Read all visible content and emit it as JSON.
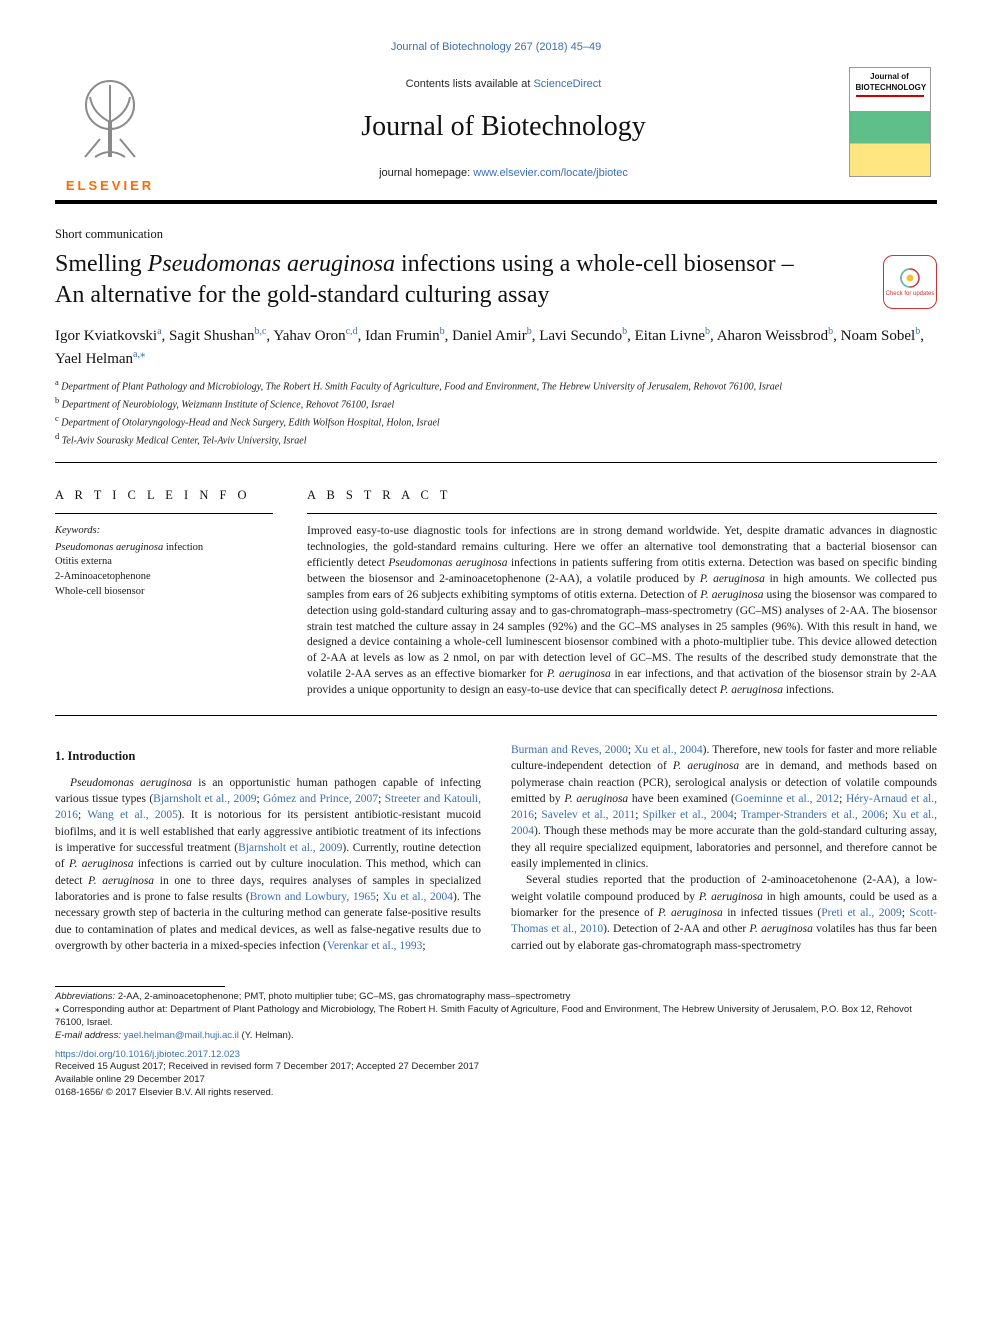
{
  "colors": {
    "link": "#3b6fb3",
    "elsevier_orange": "#ff6a00",
    "rule": "#000000",
    "text": "#1a1a1a",
    "badge_red": "#cc3333"
  },
  "typography": {
    "title_fontsize_pt": 18,
    "journal_title_fontsize_pt": 21,
    "body_fontsize_pt": 9,
    "abstract_fontsize_pt": 9,
    "affil_fontsize_pt": 7.5
  },
  "citation": "Journal of Biotechnology 267 (2018) 45–49",
  "masthead": {
    "contents_prefix": "Contents lists available at ",
    "contents_link": "ScienceDirect",
    "journal_title": "Journal of Biotechnology",
    "homepage_prefix": "journal homepage: ",
    "homepage_url": "www.elsevier.com/locate/jbiotec",
    "publisher": "ELSEVIER",
    "cover_label": "Journal of BIOTECHNOLOGY"
  },
  "article_type": "Short communication",
  "title_line1_pre": "Smelling ",
  "title_line1_ital": "Pseudomonas aeruginosa",
  "title_line1_post": " infections using a whole-cell biosensor –",
  "title_line2": "An alternative for the gold-standard culturing assay",
  "check_badge_label": "Check for updates",
  "authors": [
    {
      "name": "Igor Kviatkovski",
      "aff": "a"
    },
    {
      "name": "Sagit Shushan",
      "aff": "b,c"
    },
    {
      "name": "Yahav Oron",
      "aff": "c,d"
    },
    {
      "name": "Idan Frumin",
      "aff": "b"
    },
    {
      "name": "Daniel Amir",
      "aff": "b"
    },
    {
      "name": "Lavi Secundo",
      "aff": "b"
    },
    {
      "name": "Eitan Livne",
      "aff": "b"
    },
    {
      "name": "Aharon Weissbrod",
      "aff": "b"
    },
    {
      "name": "Noam Sobel",
      "aff": "b"
    },
    {
      "name": "Yael Helman",
      "aff": "a,",
      "corr": "⁎"
    }
  ],
  "affiliations": [
    {
      "sup": "a",
      "text": "Department of Plant Pathology and Microbiology, The Robert H. Smith Faculty of Agriculture, Food and Environment, The Hebrew University of Jerusalem, Rehovot 76100, Israel"
    },
    {
      "sup": "b",
      "text": "Department of Neurobiology, Weizmann Institute of Science, Rehovot 76100, Israel"
    },
    {
      "sup": "c",
      "text": "Department of Otolaryngology-Head and Neck Surgery, Edith Wolfson Hospital, Holon, Israel"
    },
    {
      "sup": "d",
      "text": "Tel-Aviv Sourasky Medical Center, Tel-Aviv University, Israel"
    }
  ],
  "info_head": "A R T I C L E  I N F O",
  "abs_head": "A B S T R A C T",
  "keywords_label": "Keywords:",
  "keywords": [
    "Pseudomonas aeruginosa infection",
    "Otitis externa",
    "2-Aminoacetophenone",
    "Whole-cell biosensor"
  ],
  "abstract_html": "Improved easy-to-use diagnostic tools for infections are in strong demand worldwide. Yet, despite dramatic advances in diagnostic technologies, the gold-standard remains culturing. Here we offer an alternative tool demonstrating that a bacterial biosensor can efficiently detect <i>Pseudomonas aeruginosa</i> infections in patients suffering from otitis externa. Detection was based on specific binding between the biosensor and 2-aminoacetophenone (2-AA), a volatile produced by <i>P. aeruginosa</i> in high amounts. We collected pus samples from ears of 26 subjects exhibiting symptoms of otitis externa. Detection of <i>P. aeruginosa</i> using the biosensor was compared to detection using gold-standard culturing assay and to gas-chromatograph–mass-spectrometry (GC–MS) analyses of 2-AA. The biosensor strain test matched the culture assay in 24 samples (92%) and the GC–MS analyses in 25 samples (96%). With this result in hand, we designed a device containing a whole-cell luminescent biosensor combined with a photo-multiplier tube. This device allowed detection of 2-AA at levels as low as 2 nmol, on par with detection level of GC–MS. The results of the described study demonstrate that the volatile 2-AA serves as an effective biomarker for <i>P. aeruginosa</i> in ear infections, and that activation of the biosensor strain by 2-AA provides a unique opportunity to design an easy-to-use device that can specifically detect <i>P. aeruginosa</i> infections.",
  "section1_head": "1. Introduction",
  "para1_html": "<i>Pseudomonas aeruginosa</i> is an opportunistic human pathogen capable of infecting various tissue types (<span class='cite'>Bjarnsholt et al., 2009</span>; <span class='cite'>Gómez and Prince, 2007</span>; <span class='cite'>Streeter and Katouli, 2016</span>; <span class='cite'>Wang et al., 2005</span>). It is notorious for its persistent antibiotic-resistant mucoid biofilms, and it is well established that early aggressive antibiotic treatment of its infections is imperative for successful treatment (<span class='cite'>Bjarnsholt et al., 2009</span>). Currently, routine detection of <i>P. aeruginosa</i> infections is carried out by culture inoculation. This method, which can detect <i>P. aeruginosa</i> in one to three days, requires analyses of samples in specialized laboratories and is prone to false results (<span class='cite'>Brown and Lowbury, 1965</span>; <span class='cite'>Xu et al., 2004</span>). The necessary growth step of bacteria in the culturing method can generate false-positive results due to contamination of plates and medical devices, as well as false-negative results due to overgrowth by other bacteria in a mixed-species infection (<span class='cite'>Verenkar et al., 1993</span>;",
  "para1b_html": "<span class='cite'>Burman and Reves, 2000</span>; <span class='cite'>Xu et al., 2004</span>). Therefore, new tools for faster and more reliable culture-independent detection of <i>P. aeruginosa</i> are in demand, and methods based on polymerase chain reaction (PCR), serological analysis or detection of volatile compounds emitted by <i>P. aeruginosa</i> have been examined (<span class='cite'>Goeminne et al., 2012</span>; <span class='cite'>Héry-Arnaud et al., 2016</span>; <span class='cite'>Savelev et al., 2011</span>; <span class='cite'>Spilker et al., 2004</span>; <span class='cite'>Tramper-Stranders et al., 2006</span>; <span class='cite'>Xu et al., 2004</span>). Though these methods may be more accurate than the gold-standard culturing assay, they all require specialized equipment, laboratories and personnel, and therefore cannot be easily implemented in clinics.",
  "para2_html": "Several studies reported that the production of 2-aminoacetohenone (2-AA), a low-weight volatile compound produced by <i>P. aeruginosa</i> in high amounts, could be used as a biomarker for the presence of <i>P. aeruginosa</i> in infected tissues (<span class='cite'>Preti et al., 2009</span>; <span class='cite'>Scott-Thomas et al., 2010</span>). Detection of 2-AA and other <i>P. aeruginosa</i> volatiles has thus far been carried out by elaborate gas-chromatograph mass-spectrometry",
  "footnotes": {
    "abbrev_label": "Abbreviations:",
    "abbrev_text": " 2-AA, 2-aminoacetophenone; PMT, photo multiplier tube; GC–MS, gas chromatography mass–spectrometry",
    "corr_marker": "⁎",
    "corr_text": " Corresponding author at: Department of Plant Pathology and Microbiology, The Robert H. Smith Faculty of Agriculture, Food and Environment, The Hebrew University of Jerusalem, P.O. Box 12, Rehovot 76100, Israel.",
    "email_label": "E-mail address:",
    "email_value": " yael.helman@mail.huji.ac.il",
    "email_who": " (Y. Helman).",
    "doi": "https://doi.org/10.1016/j.jbiotec.2017.12.023",
    "history": "Received 15 August 2017; Received in revised form 7 December 2017; Accepted 27 December 2017",
    "online": "Available online 29 December 2017",
    "copyright": "0168-1656/ © 2017 Elsevier B.V. All rights reserved."
  }
}
